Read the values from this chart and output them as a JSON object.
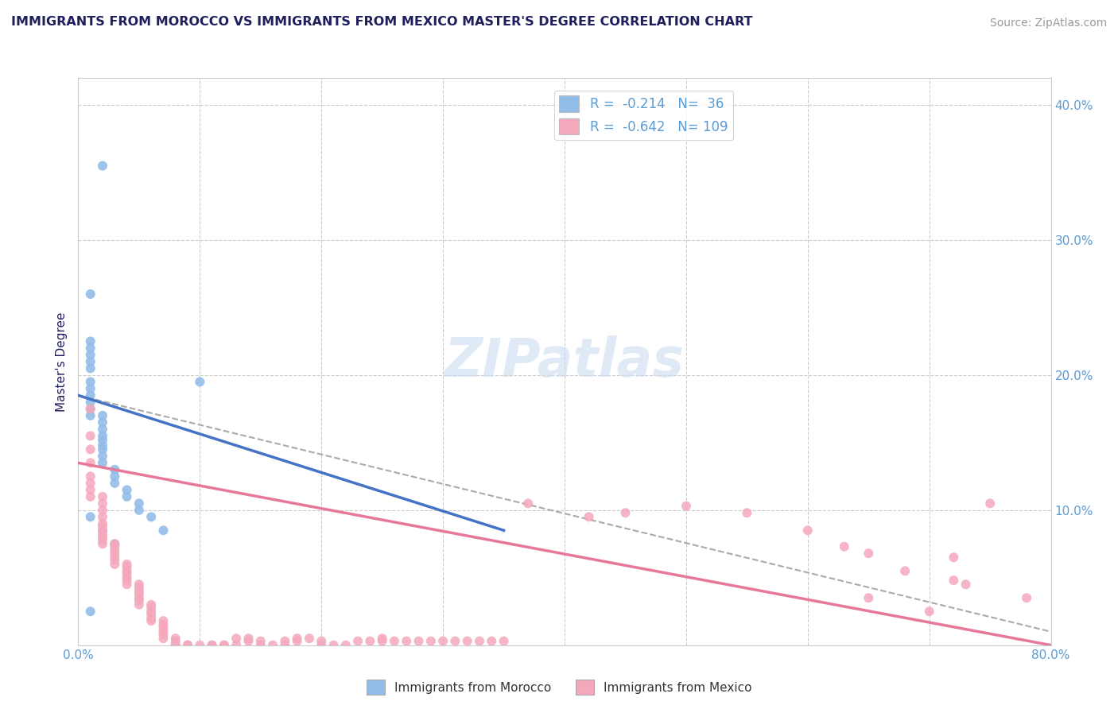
{
  "title": "IMMIGRANTS FROM MOROCCO VS IMMIGRANTS FROM MEXICO MASTER'S DEGREE CORRELATION CHART",
  "source": "Source: ZipAtlas.com",
  "ylabel": "Master's Degree",
  "xlabel": "",
  "background_color": "#ffffff",
  "plot_bg_color": "#ffffff",
  "title_color": "#1f1f5e",
  "axis_color": "#5b9bd5",
  "watermark": "ZIPatlas",
  "xlim": [
    0.0,
    0.8
  ],
  "ylim": [
    0.0,
    0.42
  ],
  "xticks": [
    0.0,
    0.1,
    0.2,
    0.3,
    0.4,
    0.5,
    0.6,
    0.7,
    0.8
  ],
  "yticks": [
    0.0,
    0.1,
    0.2,
    0.3,
    0.4
  ],
  "legend_morocco_R": "-0.214",
  "legend_morocco_N": "36",
  "legend_mexico_R": "-0.642",
  "legend_mexico_N": "109",
  "morocco_color": "#92bde8",
  "mexico_color": "#f4a8bc",
  "morocco_line_color": "#4472c4",
  "mexico_line_color": "#e87898",
  "dashed_line_color": "#aaaaaa",
  "morocco_points": [
    [
      0.02,
      0.355
    ],
    [
      0.01,
      0.26
    ],
    [
      0.01,
      0.225
    ],
    [
      0.01,
      0.22
    ],
    [
      0.01,
      0.215
    ],
    [
      0.01,
      0.21
    ],
    [
      0.01,
      0.205
    ],
    [
      0.01,
      0.195
    ],
    [
      0.01,
      0.19
    ],
    [
      0.01,
      0.185
    ],
    [
      0.01,
      0.18
    ],
    [
      0.01,
      0.175
    ],
    [
      0.01,
      0.17
    ],
    [
      0.02,
      0.17
    ],
    [
      0.02,
      0.165
    ],
    [
      0.02,
      0.16
    ],
    [
      0.02,
      0.155
    ],
    [
      0.02,
      0.152
    ],
    [
      0.02,
      0.148
    ],
    [
      0.02,
      0.145
    ],
    [
      0.02,
      0.14
    ],
    [
      0.02,
      0.135
    ],
    [
      0.03,
      0.13
    ],
    [
      0.03,
      0.125
    ],
    [
      0.03,
      0.12
    ],
    [
      0.04,
      0.115
    ],
    [
      0.04,
      0.11
    ],
    [
      0.05,
      0.105
    ],
    [
      0.05,
      0.1
    ],
    [
      0.06,
      0.095
    ],
    [
      0.07,
      0.085
    ],
    [
      0.1,
      0.195
    ],
    [
      0.01,
      0.095
    ],
    [
      0.01,
      0.025
    ],
    [
      0.02,
      0.085
    ],
    [
      0.03,
      0.075
    ]
  ],
  "mexico_points": [
    [
      0.01,
      0.175
    ],
    [
      0.01,
      0.155
    ],
    [
      0.01,
      0.145
    ],
    [
      0.01,
      0.135
    ],
    [
      0.01,
      0.125
    ],
    [
      0.01,
      0.12
    ],
    [
      0.01,
      0.115
    ],
    [
      0.01,
      0.11
    ],
    [
      0.02,
      0.11
    ],
    [
      0.02,
      0.105
    ],
    [
      0.02,
      0.1
    ],
    [
      0.02,
      0.095
    ],
    [
      0.02,
      0.09
    ],
    [
      0.02,
      0.088
    ],
    [
      0.02,
      0.085
    ],
    [
      0.02,
      0.082
    ],
    [
      0.02,
      0.08
    ],
    [
      0.02,
      0.078
    ],
    [
      0.02,
      0.075
    ],
    [
      0.03,
      0.075
    ],
    [
      0.03,
      0.073
    ],
    [
      0.03,
      0.07
    ],
    [
      0.03,
      0.068
    ],
    [
      0.03,
      0.065
    ],
    [
      0.03,
      0.063
    ],
    [
      0.03,
      0.06
    ],
    [
      0.04,
      0.06
    ],
    [
      0.04,
      0.058
    ],
    [
      0.04,
      0.055
    ],
    [
      0.04,
      0.053
    ],
    [
      0.04,
      0.05
    ],
    [
      0.04,
      0.048
    ],
    [
      0.04,
      0.045
    ],
    [
      0.05,
      0.045
    ],
    [
      0.05,
      0.043
    ],
    [
      0.05,
      0.04
    ],
    [
      0.05,
      0.038
    ],
    [
      0.05,
      0.035
    ],
    [
      0.05,
      0.033
    ],
    [
      0.05,
      0.03
    ],
    [
      0.06,
      0.03
    ],
    [
      0.06,
      0.028
    ],
    [
      0.06,
      0.025
    ],
    [
      0.06,
      0.023
    ],
    [
      0.06,
      0.02
    ],
    [
      0.06,
      0.018
    ],
    [
      0.07,
      0.018
    ],
    [
      0.07,
      0.015
    ],
    [
      0.07,
      0.013
    ],
    [
      0.07,
      0.01
    ],
    [
      0.07,
      0.008
    ],
    [
      0.07,
      0.005
    ],
    [
      0.08,
      0.005
    ],
    [
      0.08,
      0.003
    ],
    [
      0.08,
      0.0
    ],
    [
      0.08,
      0.0
    ],
    [
      0.09,
      0.0
    ],
    [
      0.09,
      0.0
    ],
    [
      0.09,
      0.0
    ],
    [
      0.1,
      0.0
    ],
    [
      0.11,
      0.0
    ],
    [
      0.11,
      0.0
    ],
    [
      0.12,
      0.0
    ],
    [
      0.12,
      0.0
    ],
    [
      0.13,
      0.0
    ],
    [
      0.13,
      0.005
    ],
    [
      0.14,
      0.005
    ],
    [
      0.14,
      0.003
    ],
    [
      0.15,
      0.003
    ],
    [
      0.15,
      0.0
    ],
    [
      0.16,
      0.0
    ],
    [
      0.17,
      0.0
    ],
    [
      0.17,
      0.003
    ],
    [
      0.18,
      0.003
    ],
    [
      0.18,
      0.005
    ],
    [
      0.19,
      0.005
    ],
    [
      0.2,
      0.003
    ],
    [
      0.2,
      0.0
    ],
    [
      0.21,
      0.0
    ],
    [
      0.22,
      0.0
    ],
    [
      0.23,
      0.003
    ],
    [
      0.24,
      0.003
    ],
    [
      0.25,
      0.003
    ],
    [
      0.25,
      0.005
    ],
    [
      0.26,
      0.003
    ],
    [
      0.27,
      0.003
    ],
    [
      0.28,
      0.003
    ],
    [
      0.29,
      0.003
    ],
    [
      0.3,
      0.003
    ],
    [
      0.31,
      0.003
    ],
    [
      0.32,
      0.003
    ],
    [
      0.33,
      0.003
    ],
    [
      0.34,
      0.003
    ],
    [
      0.35,
      0.003
    ],
    [
      0.37,
      0.105
    ],
    [
      0.42,
      0.095
    ],
    [
      0.45,
      0.098
    ],
    [
      0.5,
      0.103
    ],
    [
      0.55,
      0.098
    ],
    [
      0.6,
      0.085
    ],
    [
      0.63,
      0.073
    ],
    [
      0.65,
      0.068
    ],
    [
      0.65,
      0.035
    ],
    [
      0.68,
      0.055
    ],
    [
      0.7,
      0.025
    ],
    [
      0.72,
      0.065
    ],
    [
      0.72,
      0.048
    ],
    [
      0.73,
      0.045
    ],
    [
      0.75,
      0.105
    ],
    [
      0.78,
      0.035
    ]
  ],
  "morocco_trendline": [
    [
      0.0,
      0.185
    ],
    [
      0.35,
      0.085
    ]
  ],
  "mexico_trendline": [
    [
      0.0,
      0.135
    ],
    [
      0.8,
      0.0
    ]
  ],
  "dashed_trendline": [
    [
      0.0,
      0.185
    ],
    [
      0.8,
      0.01
    ]
  ]
}
